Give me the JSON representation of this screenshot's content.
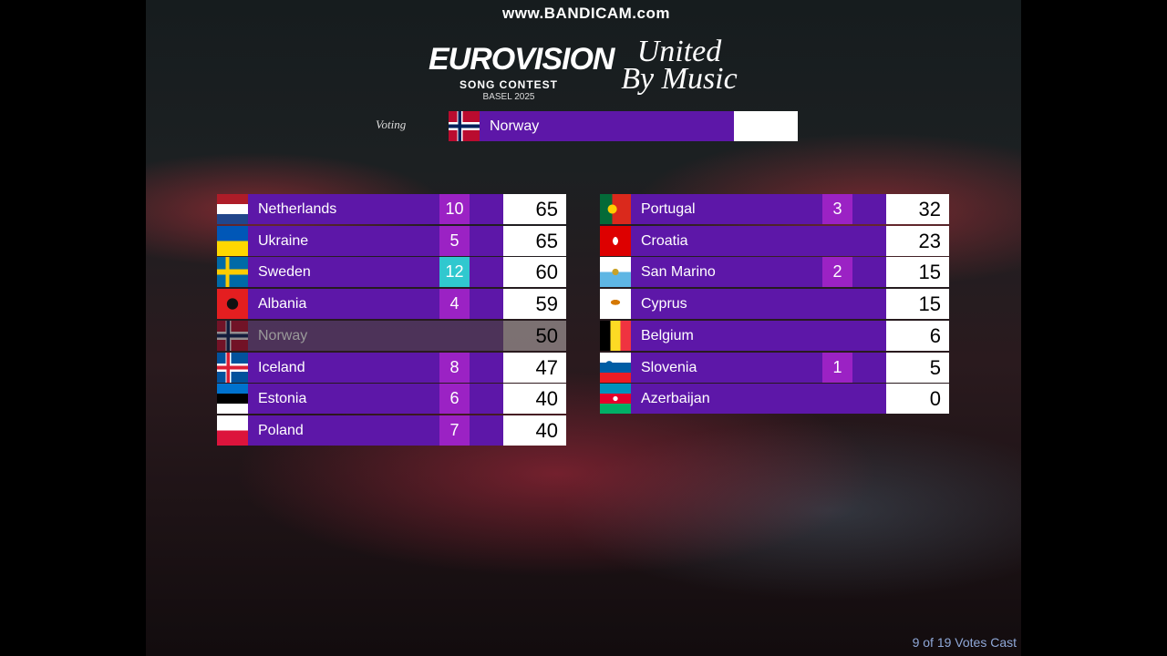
{
  "watermark": "www.BANDICAM.com",
  "logo": {
    "name": "EUROVISION",
    "subtitle": "SONG CONTEST",
    "edition": "BASEL 2025",
    "slogan_line1": "United",
    "slogan_line2": "By Music"
  },
  "voting": {
    "label": "Voting",
    "country": "Norway"
  },
  "scoreboard": {
    "left": [
      {
        "country": "Netherlands",
        "points": 10,
        "total": 65
      },
      {
        "country": "Ukraine",
        "points": 5,
        "total": 65
      },
      {
        "country": "Sweden",
        "points": 12,
        "total": 60
      },
      {
        "country": "Albania",
        "points": 4,
        "total": 59
      },
      {
        "country": "Norway",
        "total": 50
      },
      {
        "country": "Iceland",
        "points": 8,
        "total": 47
      },
      {
        "country": "Estonia",
        "points": 6,
        "total": 40
      },
      {
        "country": "Poland",
        "points": 7,
        "total": 40
      }
    ],
    "right": [
      {
        "country": "Portugal",
        "points": 3,
        "total": 32
      },
      {
        "country": "Croatia",
        "total": 23
      },
      {
        "country": "San Marino",
        "points": 2,
        "total": 15
      },
      {
        "country": "Cyprus",
        "total": 15
      },
      {
        "country": "Belgium",
        "total": 6
      },
      {
        "country": "Slovenia",
        "points": 1,
        "total": 5
      },
      {
        "country": "Azerbaijan",
        "total": 0
      }
    ]
  },
  "footer": "9 of 19 Votes Cast"
}
